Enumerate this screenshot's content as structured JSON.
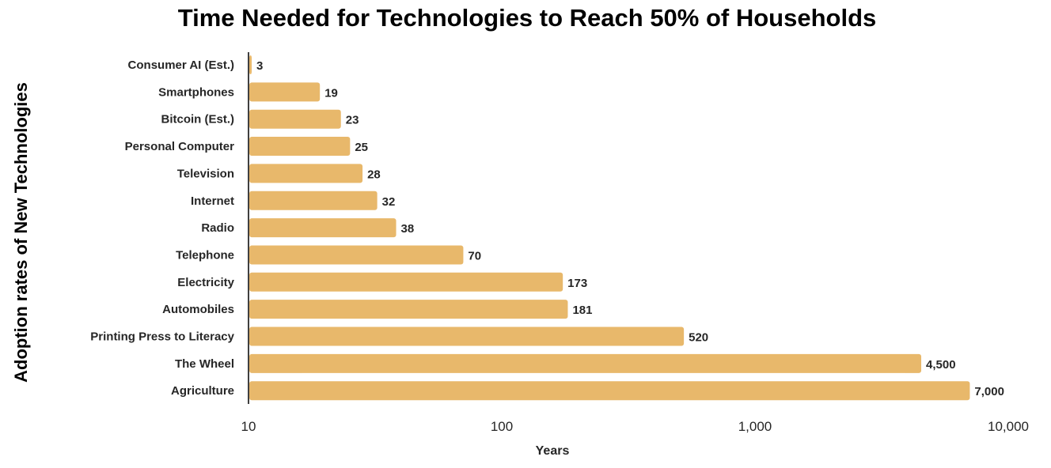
{
  "chart_data": {
    "type": "bar",
    "orientation": "horizontal",
    "title": "Time Needed for Technologies to Reach 50% of Households",
    "ylabel": "Adoption rates of New Technologies",
    "xlabel": "Years",
    "x_scale": "log",
    "xlim": [
      10,
      10000
    ],
    "x_ticks": [
      "10",
      "100",
      "1,000",
      "10,000"
    ],
    "x_tick_values": [
      10,
      100,
      1000,
      10000
    ],
    "grid": false,
    "bar_color": "#E8B86B",
    "categories": [
      "Consumer AI (Est.)",
      "Smartphones",
      "Bitcoin (Est.)",
      "Personal Computer",
      "Television",
      "Internet",
      "Radio",
      "Telephone",
      "Electricity",
      "Automobiles",
      "Printing Press to Literacy",
      "The Wheel",
      "Agriculture"
    ],
    "values": [
      3,
      19,
      23,
      25,
      28,
      32,
      38,
      70,
      173,
      181,
      520,
      4500,
      7000
    ],
    "data_labels": [
      "3",
      "19",
      "23",
      "25",
      "28",
      "32",
      "38",
      "70",
      "173",
      "181",
      "520",
      "4,500",
      "7,000"
    ]
  }
}
